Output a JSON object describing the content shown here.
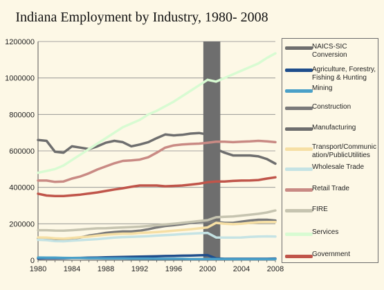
{
  "chart_data": {
    "type": "line",
    "title": "Indiana Employment by Industry, 1980- 2008",
    "xlabel": "",
    "ylabel": "",
    "xlim": [
      1980,
      2008
    ],
    "ylim": [
      0,
      1200000
    ],
    "x_ticks": [
      1980,
      1984,
      1988,
      1992,
      1996,
      2000,
      2004,
      2008
    ],
    "y_ticks": [
      0,
      200000,
      400000,
      600000,
      800000,
      1000000,
      1200000
    ],
    "y_tick_labels": [
      "0",
      "200000",
      "400000",
      "600000",
      "800000",
      "1000000",
      "1200000"
    ],
    "legend_position": "right",
    "highlight_band": {
      "name": "NAICS-SIC Conversion",
      "from": 1999.5,
      "to": 2001.5,
      "color": "#6e6e6e"
    },
    "series": [
      {
        "name": "Agriculture, Forestry, Fishing & Hunting",
        "color": "#1f4e8c",
        "x": [
          1980,
          1981,
          1982,
          1983,
          1984,
          1985,
          1986,
          1987,
          1988,
          1989,
          1990,
          1991,
          1992,
          1993,
          1994,
          1995,
          1996,
          1997,
          1998,
          1999,
          2000,
          2001,
          2002,
          2003,
          2004,
          2005,
          2006,
          2007,
          2008
        ],
        "values": [
          10000,
          11000,
          11000,
          11000,
          12000,
          13000,
          14000,
          15000,
          16000,
          17000,
          18000,
          19000,
          20000,
          21000,
          22000,
          23000,
          24000,
          25000,
          26000,
          27000,
          28000,
          10000,
          8000,
          8000,
          8000,
          8000,
          8000,
          8000,
          9000
        ]
      },
      {
        "name": "Mining",
        "color": "#4aa0c8",
        "x": [
          1980,
          1981,
          1982,
          1983,
          1984,
          1985,
          1986,
          1987,
          1988,
          1989,
          1990,
          1991,
          1992,
          1993,
          1994,
          1995,
          1996,
          1997,
          1998,
          1999,
          2000,
          2001,
          2002,
          2003,
          2004,
          2005,
          2006,
          2007,
          2008
        ],
        "values": [
          15000,
          14000,
          14000,
          13000,
          12000,
          12000,
          11000,
          11000,
          10000,
          10000,
          10000,
          9000,
          9000,
          9000,
          8000,
          8000,
          8000,
          8000,
          7000,
          7000,
          7000,
          7000,
          7000,
          6000,
          6000,
          6000,
          6000,
          6000,
          6000
        ]
      },
      {
        "name": "Construction",
        "color": "#7a7a7a",
        "x": [
          1980,
          1981,
          1982,
          1983,
          1984,
          1985,
          1986,
          1987,
          1988,
          1989,
          1990,
          1991,
          1992,
          1993,
          1994,
          1995,
          1996,
          1997,
          1998,
          1999,
          2000,
          2001,
          2002,
          2003,
          2004,
          2005,
          2006,
          2007,
          2008
        ],
        "values": [
          120000,
          118000,
          115000,
          112000,
          120000,
          125000,
          135000,
          142000,
          150000,
          155000,
          158000,
          158000,
          162000,
          170000,
          180000,
          188000,
          192000,
          198000,
          205000,
          210000,
          212000,
          210000,
          205000,
          205000,
          212000,
          218000,
          222000,
          222000,
          218000
        ]
      },
      {
        "name": "Manufacturing",
        "color": "#6e6e6e",
        "x": [
          1980,
          1981,
          1982,
          1983,
          1984,
          1985,
          1986,
          1987,
          1988,
          1989,
          1990,
          1991,
          1992,
          1993,
          1994,
          1995,
          1996,
          1997,
          1998,
          1999,
          2000,
          2001,
          2002,
          2003,
          2004,
          2005,
          2006,
          2007,
          2008
        ],
        "values": [
          660000,
          655000,
          595000,
          590000,
          625000,
          618000,
          610000,
          625000,
          645000,
          655000,
          648000,
          625000,
          635000,
          648000,
          670000,
          690000,
          685000,
          688000,
          695000,
          698000,
          690000,
          610000,
          590000,
          575000,
          575000,
          575000,
          570000,
          555000,
          530000
        ]
      },
      {
        "name": "Transport/Communication/PublicUtilities",
        "color": "#f6dfa4",
        "x": [
          1980,
          1981,
          1982,
          1983,
          1984,
          1985,
          1986,
          1987,
          1988,
          1989,
          1990,
          1991,
          1992,
          1993,
          1994,
          1995,
          1996,
          1997,
          1998,
          1999,
          2000,
          2001,
          2002,
          2003,
          2004,
          2005,
          2006,
          2007,
          2008
        ],
        "values": [
          125000,
          124000,
          120000,
          118000,
          122000,
          126000,
          130000,
          135000,
          140000,
          143000,
          146000,
          146000,
          150000,
          152000,
          155000,
          158000,
          162000,
          166000,
          170000,
          175000,
          180000,
          205000,
          200000,
          198000,
          200000,
          205000,
          208000,
          210000,
          210000
        ]
      },
      {
        "name": "Wholesale Trade",
        "color": "#c5e3e4",
        "x": [
          1980,
          1981,
          1982,
          1983,
          1984,
          1985,
          1986,
          1987,
          1988,
          1989,
          1990,
          1991,
          1992,
          1993,
          1994,
          1995,
          1996,
          1997,
          1998,
          1999,
          2000,
          2001,
          2002,
          2003,
          2004,
          2005,
          2006,
          2007,
          2008
        ],
        "values": [
          112000,
          110000,
          105000,
          104000,
          107000,
          110000,
          113000,
          116000,
          120000,
          124000,
          127000,
          128000,
          130000,
          132000,
          135000,
          138000,
          140000,
          143000,
          146000,
          148000,
          150000,
          125000,
          124000,
          124000,
          125000,
          128000,
          130000,
          131000,
          130000
        ]
      },
      {
        "name": "Retail Trade",
        "color": "#c98a84",
        "x": [
          1980,
          1981,
          1982,
          1983,
          1984,
          1985,
          1986,
          1987,
          1988,
          1989,
          1990,
          1991,
          1992,
          1993,
          1994,
          1995,
          1996,
          1997,
          1998,
          1999,
          2000,
          2001,
          2002,
          2003,
          2004,
          2005,
          2006,
          2007,
          2008
        ],
        "values": [
          437000,
          437000,
          430000,
          432000,
          448000,
          460000,
          477000,
          498000,
          515000,
          532000,
          545000,
          548000,
          552000,
          565000,
          590000,
          618000,
          630000,
          635000,
          638000,
          640000,
          645000,
          650000,
          650000,
          648000,
          650000,
          652000,
          655000,
          652000,
          648000
        ]
      },
      {
        "name": "FIRE",
        "color": "#c6c4b0",
        "x": [
          1980,
          1981,
          1982,
          1983,
          1984,
          1985,
          1986,
          1987,
          1988,
          1989,
          1990,
          1991,
          1992,
          1993,
          1994,
          1995,
          1996,
          1997,
          1998,
          1999,
          2000,
          2001,
          2002,
          2003,
          2004,
          2005,
          2006,
          2007,
          2008
        ],
        "values": [
          165000,
          165000,
          163000,
          162000,
          165000,
          168000,
          172000,
          175000,
          176000,
          178000,
          180000,
          182000,
          184000,
          188000,
          192000,
          196000,
          200000,
          205000,
          210000,
          215000,
          220000,
          236000,
          238000,
          240000,
          245000,
          250000,
          255000,
          262000,
          273000
        ]
      },
      {
        "name": "Services",
        "color": "#d8fbd2",
        "x": [
          1980,
          1981,
          1982,
          1983,
          1984,
          1985,
          1986,
          1987,
          1988,
          1989,
          1990,
          1991,
          1992,
          1993,
          1994,
          1995,
          1996,
          1997,
          1998,
          1999,
          2000,
          2001,
          2002,
          2003,
          2004,
          2005,
          2006,
          2007,
          2008
        ],
        "values": [
          480000,
          490000,
          500000,
          520000,
          550000,
          580000,
          610000,
          640000,
          670000,
          700000,
          730000,
          750000,
          770000,
          800000,
          820000,
          845000,
          870000,
          900000,
          930000,
          960000,
          990000,
          980000,
          1000000,
          1020000,
          1040000,
          1060000,
          1080000,
          1110000,
          1135000
        ]
      },
      {
        "name": "Government",
        "color": "#c0554a",
        "x": [
          1980,
          1981,
          1982,
          1983,
          1984,
          1985,
          1986,
          1987,
          1988,
          1989,
          1990,
          1991,
          1992,
          1993,
          1994,
          1995,
          1996,
          1997,
          1998,
          1999,
          2000,
          2001,
          2002,
          2003,
          2004,
          2005,
          2006,
          2007,
          2008
        ],
        "values": [
          365000,
          355000,
          352000,
          352000,
          356000,
          360000,
          366000,
          372000,
          380000,
          388000,
          395000,
          403000,
          410000,
          410000,
          410000,
          406000,
          408000,
          410000,
          415000,
          420000,
          428000,
          432000,
          432000,
          435000,
          437000,
          438000,
          440000,
          448000,
          455000
        ]
      }
    ]
  },
  "legend": [
    {
      "label": "NAICS-SIC Conversion",
      "color": "#6e6e6e"
    },
    {
      "label": "Agriculture, Forestry, Fishing & Hunting",
      "color": "#1f4e8c"
    },
    {
      "label": "Mining",
      "color": "#4aa0c8"
    },
    {
      "label": "Construction",
      "color": "#7a7a7a"
    },
    {
      "label": "Manufacturing",
      "color": "#6e6e6e"
    },
    {
      "label": "Transport/Communic ation/PublicUtilities",
      "color": "#f6dfa4"
    },
    {
      "label": "Wholesale Trade",
      "color": "#c5e3e4"
    },
    {
      "label": "Retail Trade",
      "color": "#c98a84"
    },
    {
      "label": "FIRE",
      "color": "#c6c4b0"
    },
    {
      "label": "Services",
      "color": "#d8fbd2"
    },
    {
      "label": "Government",
      "color": "#c0554a"
    }
  ]
}
